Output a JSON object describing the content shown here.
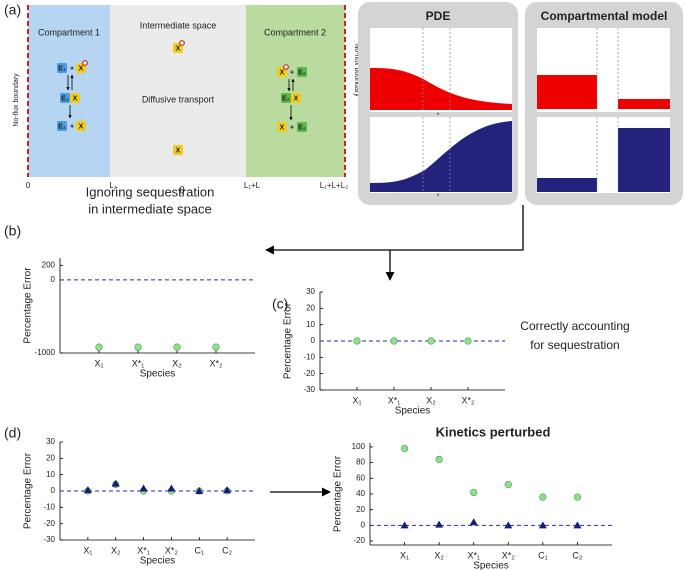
{
  "panel_labels": [
    "(a)",
    "(b)",
    "(c)",
    "(d)"
  ],
  "schematic": {
    "compartment_1": "Compartment 1",
    "intermediate": "Intermediate space",
    "compartment_2": "Compartment 2",
    "transport": "Diffusive transport",
    "boundary": "No-flux boundary",
    "species": {
      "E1": "E₁",
      "E2": "E₂",
      "X": "X",
      "plus": "+"
    },
    "axis": {
      "origin": "0",
      "l1": "L₁",
      "theta": "θ",
      "l1l": "L₁+L",
      "total": "L₁+L+L₂"
    }
  },
  "pde": {
    "title": "PDE",
    "xlabel": "θ"
  },
  "compartmental": {
    "title": "Compartmental model"
  },
  "chart_data": [
    {
      "type": "scatter",
      "title": [
        "Ignoring sequestration",
        "in intermediate space"
      ],
      "xlabel": "Species",
      "ylabel": "Percentage Error",
      "categories": [
        "X₁",
        "X*₁",
        "X₂",
        "X*₂"
      ],
      "series": [
        {
          "color": "#8fe08f",
          "marker": "circle",
          "values": [
            -920,
            -920,
            -920,
            -920
          ]
        }
      ],
      "ylim": [
        -1000,
        300
      ],
      "yticks": [
        -1000,
        0,
        200
      ],
      "reference_line": {
        "value": 0,
        "color": "#2a2aa8"
      }
    },
    {
      "type": "scatter",
      "annotation": [
        "Correctly accounting",
        "for sequestration"
      ],
      "xlabel": "Species",
      "ylabel": "Percentage Error",
      "categories": [
        "X₁",
        "X*₁",
        "X₂",
        "X*₂"
      ],
      "series": [
        {
          "color": "#8fe08f",
          "marker": "circle",
          "values": [
            0,
            0,
            0,
            0
          ]
        }
      ],
      "ylim": [
        -30,
        30
      ],
      "yticks": [
        -30,
        -20,
        -10,
        0,
        10,
        20,
        30
      ],
      "reference_line": {
        "value": 0,
        "color": "#2a2aa8"
      }
    },
    {
      "type": "scatter",
      "xlabel": "Species",
      "ylabel": "Percentage Error",
      "categories": [
        "X₁",
        "X₂",
        "X*₁",
        "X*₂",
        "C₁",
        "C₂"
      ],
      "series": [
        {
          "color": "#8fe08f",
          "marker": "circle",
          "values": [
            0,
            4,
            0,
            0,
            0,
            0
          ]
        },
        {
          "color": "#1a1a7a",
          "marker": "triangle",
          "values": [
            0.5,
            4.5,
            1.5,
            1.5,
            0,
            0.5
          ]
        }
      ],
      "ylim": [
        -30,
        30
      ],
      "yticks": [
        -30,
        -20,
        -10,
        0,
        10,
        20,
        30
      ],
      "reference_line": {
        "value": 0,
        "color": "#2a2aa8"
      }
    },
    {
      "type": "scatter",
      "title": [
        "Kinetics perturbed"
      ],
      "xlabel": "Species",
      "ylabel": "Percentage Error",
      "categories": [
        "X₁",
        "X₂",
        "X*₁",
        "X*₂",
        "C₁",
        "C₂"
      ],
      "series": [
        {
          "color": "#8fe08f",
          "marker": "circle",
          "values": [
            98,
            84,
            42,
            52,
            36,
            36
          ]
        },
        {
          "color": "#1a1a7a",
          "marker": "triangle",
          "values": [
            0,
            1,
            4,
            0,
            0,
            0
          ]
        }
      ],
      "ylim": [
        -25,
        105
      ],
      "yticks": [
        -20,
        0,
        20,
        40,
        60,
        80,
        100
      ],
      "reference_line": {
        "value": 0,
        "color": "#2a2aa8"
      }
    }
  ]
}
